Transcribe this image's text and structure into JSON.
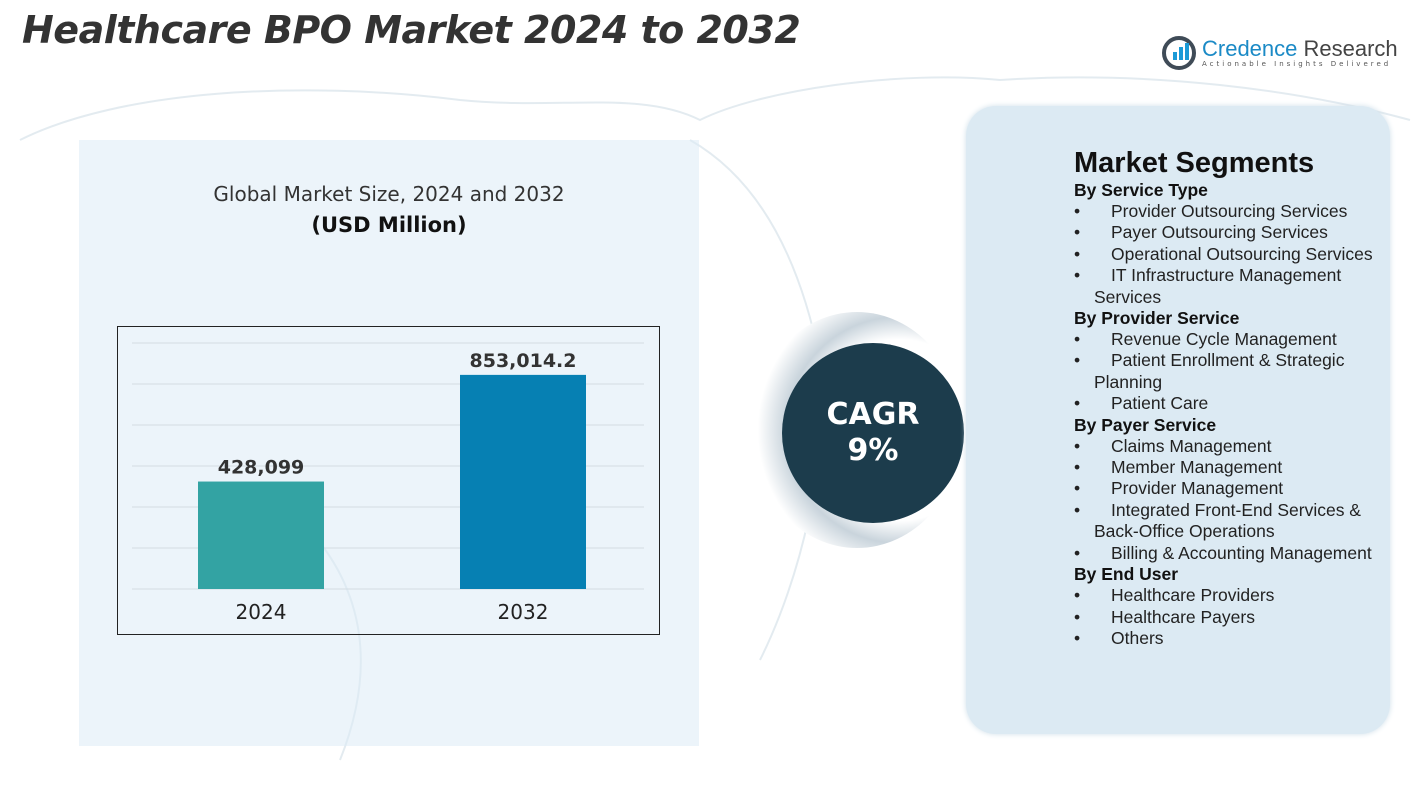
{
  "title": "Healthcare BPO Market 2024 to 2032",
  "logo": {
    "name_a": "Credence",
    "name_b": " Research",
    "tagline": "Actionable Insights Delivered"
  },
  "chart_header": {
    "title": "Global Market Size, 2024 and 2032",
    "unit": "(USD Million)"
  },
  "chart_data": {
    "type": "bar",
    "title": "Global Market Size, 2024 and 2032",
    "ylabel": "(USD Million)",
    "categories": [
      "2024",
      "2032"
    ],
    "values": [
      428099,
      853014.2
    ],
    "data_labels": [
      "428,099",
      "853,014.2"
    ],
    "colors": [
      "#33a3a3",
      "#0680b3"
    ],
    "ylim": [
      0,
      980000
    ],
    "grid": true
  },
  "cagr": {
    "label": "CAGR",
    "value": "9%"
  },
  "segments": {
    "heading": "Market Segments",
    "groups": [
      {
        "name": "By Service Type",
        "items": [
          "Provider Outsourcing Services",
          "Payer Outsourcing Services",
          "Operational Outsourcing Services",
          "IT Infrastructure Management Services"
        ]
      },
      {
        "name": "By Provider Service",
        "items": [
          "Revenue Cycle Management",
          "Patient Enrollment & Strategic Planning",
          "Patient Care"
        ]
      },
      {
        "name": "By Payer Service",
        "items": [
          "Claims Management",
          "Member Management",
          "Provider Management",
          "Integrated Front-End Services & Back-Office Operations",
          "Billing & Accounting Management"
        ]
      },
      {
        "name": "By End User",
        "items": [
          "Healthcare Providers",
          "Healthcare Payers",
          "Others"
        ]
      }
    ]
  }
}
